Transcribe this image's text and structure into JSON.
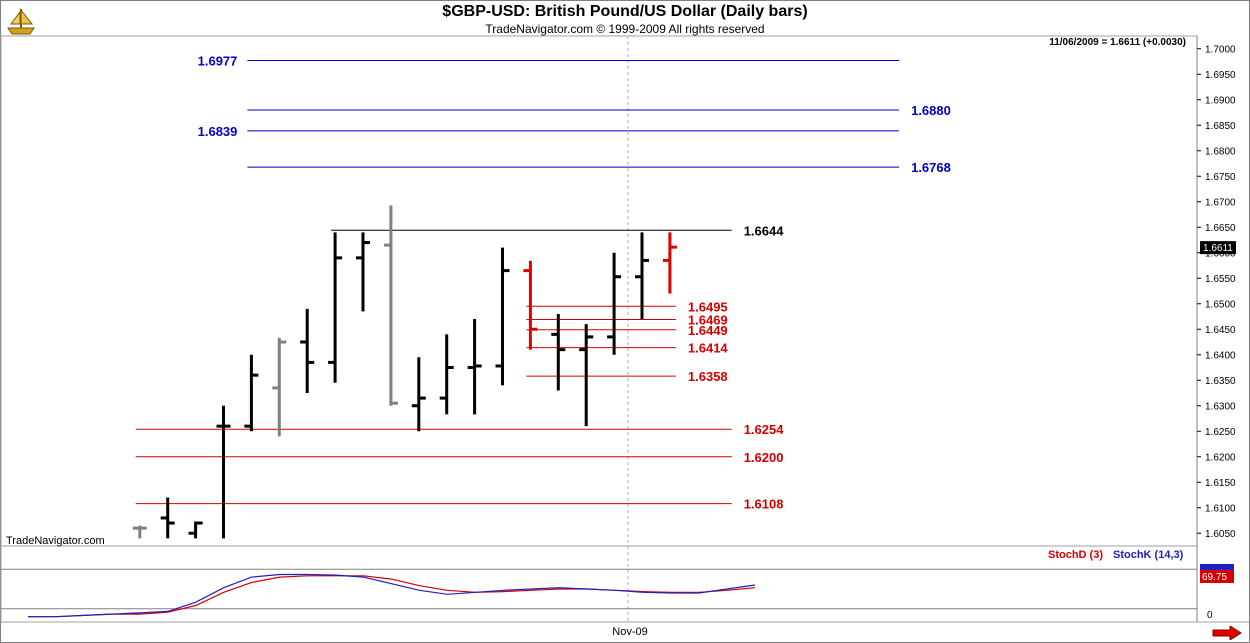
{
  "header": {
    "title": "$GBP-USD:  British Pound/US Dollar  (Daily bars)",
    "subtitle": "TradeNavigator.com © 1999-2009 All rights reserved",
    "last_readout": "11/06/2009 = 1.6611 (+0.0030)"
  },
  "watermark": "TradeNavigator.com",
  "x_axis_label": "Nov-09",
  "colors": {
    "bar_default": "#000000",
    "bar_gray": "#808080",
    "bar_red": "#e00000",
    "level_blue": "#0000c8",
    "level_red": "#d40000",
    "level_black": "#000000",
    "stoch_d": "#d40000",
    "stoch_k": "#2020c0",
    "last_price_bg": "#000000",
    "stoch_value_bg": "#d40000"
  },
  "icons": {
    "logo": "ship-wheel-logo-icon",
    "next": "red-right-arrow-icon"
  },
  "chart_data": [
    {
      "type": "ohlc",
      "title": "$GBP-USD:  British Pound/US Dollar  (Daily bars)",
      "ylim": [
        1.6025,
        1.7025
      ],
      "y_ticks": [
        "1.7000",
        "1.6950",
        "1.6900",
        "1.6850",
        "1.6800",
        "1.6750",
        "1.6700",
        "1.6650",
        "1.6600",
        "1.6550",
        "1.6500",
        "1.6450",
        "1.6400",
        "1.6350",
        "1.6300",
        "1.6250",
        "1.6200",
        "1.6150",
        "1.6100",
        "1.6050"
      ],
      "last_price_label": "1.6611",
      "bars": [
        {
          "i": 0,
          "open": 1.606,
          "high": 1.6065,
          "low": 1.604,
          "close": 1.606,
          "color": "gray"
        },
        {
          "i": 1,
          "open": 1.608,
          "high": 1.612,
          "low": 1.604,
          "close": 1.607,
          "color": "black"
        },
        {
          "i": 2,
          "open": 1.605,
          "high": 1.6073,
          "low": 1.604,
          "close": 1.607,
          "color": "black"
        },
        {
          "i": 3,
          "open": 1.626,
          "high": 1.63,
          "low": 1.604,
          "close": 1.626,
          "color": "black"
        },
        {
          "i": 4,
          "open": 1.626,
          "high": 1.64,
          "low": 1.625,
          "close": 1.636,
          "color": "black"
        },
        {
          "i": 5,
          "open": 1.6335,
          "high": 1.6433,
          "low": 1.624,
          "close": 1.6425,
          "color": "gray"
        },
        {
          "i": 6,
          "open": 1.6425,
          "high": 1.649,
          "low": 1.6325,
          "close": 1.6385,
          "color": "black"
        },
        {
          "i": 7,
          "open": 1.6385,
          "high": 1.664,
          "low": 1.6345,
          "close": 1.659,
          "color": "black"
        },
        {
          "i": 8,
          "open": 1.659,
          "high": 1.664,
          "low": 1.6485,
          "close": 1.662,
          "color": "black"
        },
        {
          "i": 9,
          "open": 1.6615,
          "high": 1.6693,
          "low": 1.63,
          "close": 1.6305,
          "color": "gray"
        },
        {
          "i": 10,
          "open": 1.63,
          "high": 1.6395,
          "low": 1.625,
          "close": 1.6315,
          "color": "black"
        },
        {
          "i": 11,
          "open": 1.6315,
          "high": 1.644,
          "low": 1.6283,
          "close": 1.6375,
          "color": "black"
        },
        {
          "i": 12,
          "open": 1.6375,
          "high": 1.647,
          "low": 1.6283,
          "close": 1.6378,
          "color": "black"
        },
        {
          "i": 13,
          "open": 1.6378,
          "high": 1.661,
          "low": 1.634,
          "close": 1.6565,
          "color": "black"
        },
        {
          "i": 14,
          "open": 1.6565,
          "high": 1.6584,
          "low": 1.641,
          "close": 1.645,
          "color": "red"
        },
        {
          "i": 15,
          "open": 1.644,
          "high": 1.648,
          "low": 1.633,
          "close": 1.641,
          "color": "black"
        },
        {
          "i": 16,
          "open": 1.641,
          "high": 1.646,
          "low": 1.626,
          "close": 1.6435,
          "color": "black"
        },
        {
          "i": 17,
          "open": 1.6435,
          "high": 1.66,
          "low": 1.64,
          "close": 1.6553,
          "color": "black"
        },
        {
          "i": 18,
          "open": 1.6553,
          "high": 1.664,
          "low": 1.647,
          "close": 1.6585,
          "color": "black"
        },
        {
          "i": 19,
          "open": 1.6585,
          "high": 1.664,
          "low": 1.652,
          "close": 1.6611,
          "color": "red"
        }
      ],
      "levels": [
        {
          "value": "1.6977",
          "color": "blue",
          "label_side": "left"
        },
        {
          "value": "1.6880",
          "color": "blue",
          "label_side": "right"
        },
        {
          "value": "1.6839",
          "color": "blue",
          "label_side": "left"
        },
        {
          "value": "1.6768",
          "color": "blue",
          "label_side": "right"
        },
        {
          "value": "1.6644",
          "color": "black",
          "label_side": "right"
        },
        {
          "value": "1.6495",
          "color": "red",
          "label_side": "right"
        },
        {
          "value": "1.6469",
          "color": "red",
          "label_side": "right"
        },
        {
          "value": "1.6449",
          "color": "red",
          "label_side": "right"
        },
        {
          "value": "1.6414",
          "color": "red",
          "label_side": "right"
        },
        {
          "value": "1.6358",
          "color": "red",
          "label_side": "right"
        },
        {
          "value": "1.6254",
          "color": "red",
          "label_side": "right"
        },
        {
          "value": "1.6200",
          "color": "red",
          "label_side": "right"
        },
        {
          "value": "1.6108",
          "color": "red",
          "label_side": "right"
        }
      ],
      "level_spans": [
        {
          "value": "1.6977",
          "from_bar": 6,
          "to_bar": 29
        },
        {
          "value": "1.6880",
          "from_bar": 6,
          "to_bar": 29
        },
        {
          "value": "1.6839",
          "from_bar": 6,
          "to_bar": 29
        },
        {
          "value": "1.6768",
          "from_bar": 6,
          "to_bar": 29
        },
        {
          "value": "1.6644",
          "from_bar": 9,
          "to_bar": 23
        },
        {
          "value": "1.6495",
          "from_bar": 16,
          "to_bar": 21
        },
        {
          "value": "1.6469",
          "from_bar": 16,
          "to_bar": 21
        },
        {
          "value": "1.6449",
          "from_bar": 16,
          "to_bar": 21
        },
        {
          "value": "1.6414",
          "from_bar": 16,
          "to_bar": 21
        },
        {
          "value": "1.6358",
          "from_bar": 16,
          "to_bar": 21
        },
        {
          "value": "1.6254",
          "from_bar": 2,
          "to_bar": 23
        },
        {
          "value": "1.6200",
          "from_bar": 2,
          "to_bar": 23
        },
        {
          "value": "1.6108",
          "from_bar": 2,
          "to_bar": 23
        }
      ]
    },
    {
      "type": "line",
      "title": "",
      "ylim": [
        0,
        100
      ],
      "y_ticks": [
        "0"
      ],
      "reference_lines": [
        80,
        20
      ],
      "current_value_label": "69.75",
      "series": [
        {
          "name": "StochD (3)",
          "color": "red",
          "values": [
            8,
            8,
            10,
            12,
            12,
            15,
            25,
            45,
            60,
            68,
            70,
            70,
            70,
            65,
            55,
            48,
            45,
            46,
            48,
            50,
            50,
            48,
            46,
            45,
            45,
            48,
            52
          ]
        },
        {
          "name": "StochK (14,3)",
          "color": "blue",
          "values": [
            8,
            8,
            10,
            12,
            14,
            16,
            30,
            52,
            68,
            72,
            72,
            71,
            68,
            58,
            48,
            42,
            45,
            48,
            50,
            52,
            50,
            48,
            45,
            44,
            44,
            50,
            56
          ]
        }
      ]
    }
  ]
}
